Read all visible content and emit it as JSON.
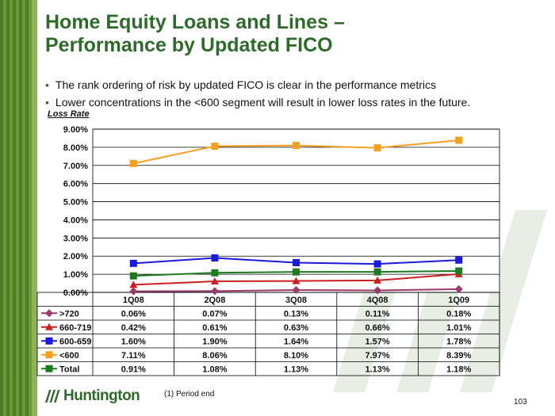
{
  "title_line1": "Home Equity Loans and Lines –",
  "title_line2": "Performance by Updated FICO",
  "bullets": [
    "The rank ordering of risk by updated FICO is clear in the performance metrics",
    "Lower concentrations in the <600 segment will result in lower loss rates in the future."
  ],
  "footnote": "(1)  Period end",
  "page_number": "103",
  "logo_text": "Huntington",
  "chart_data": {
    "type": "line",
    "ylabel": "Loss Rate",
    "categories": [
      "1Q08",
      "2Q08",
      "3Q08",
      "4Q08",
      "1Q09"
    ],
    "ylim": [
      0,
      9
    ],
    "yticks": [
      "0.00%",
      "1.00%",
      "2.00%",
      "3.00%",
      "4.00%",
      "5.00%",
      "6.00%",
      "7.00%",
      "8.00%",
      "9.00%"
    ],
    "grid": true,
    "legend": "data-table",
    "series": [
      {
        "name": ">720",
        "color": "#9b3a6b",
        "marker": "diamond",
        "values": [
          0.06,
          0.07,
          0.13,
          0.11,
          0.18
        ],
        "labels": [
          "0.06%",
          "0.07%",
          "0.13%",
          "0.11%",
          "0.18%"
        ]
      },
      {
        "name": "660-719",
        "color": "#cc1f1f",
        "marker": "triangle",
        "values": [
          0.42,
          0.61,
          0.63,
          0.66,
          1.01
        ],
        "labels": [
          "0.42%",
          "0.61%",
          "0.63%",
          "0.66%",
          "1.01%"
        ]
      },
      {
        "name": "600-659",
        "color": "#1a1adb",
        "marker": "square",
        "values": [
          1.6,
          1.9,
          1.64,
          1.57,
          1.78
        ],
        "labels": [
          "1.60%",
          "1.90%",
          "1.64%",
          "1.57%",
          "1.78%"
        ]
      },
      {
        "name": "<600",
        "color": "#f5a020",
        "marker": "square",
        "values": [
          7.11,
          8.06,
          8.1,
          7.97,
          8.39
        ],
        "labels": [
          "7.11%",
          "8.06%",
          "8.10%",
          "7.97%",
          "8.39%"
        ]
      },
      {
        "name": "Total",
        "color": "#1f7a1f",
        "marker": "square",
        "values": [
          0.91,
          1.08,
          1.13,
          1.13,
          1.18
        ],
        "labels": [
          "0.91%",
          "1.08%",
          "1.13%",
          "1.13%",
          "1.18%"
        ]
      }
    ]
  }
}
